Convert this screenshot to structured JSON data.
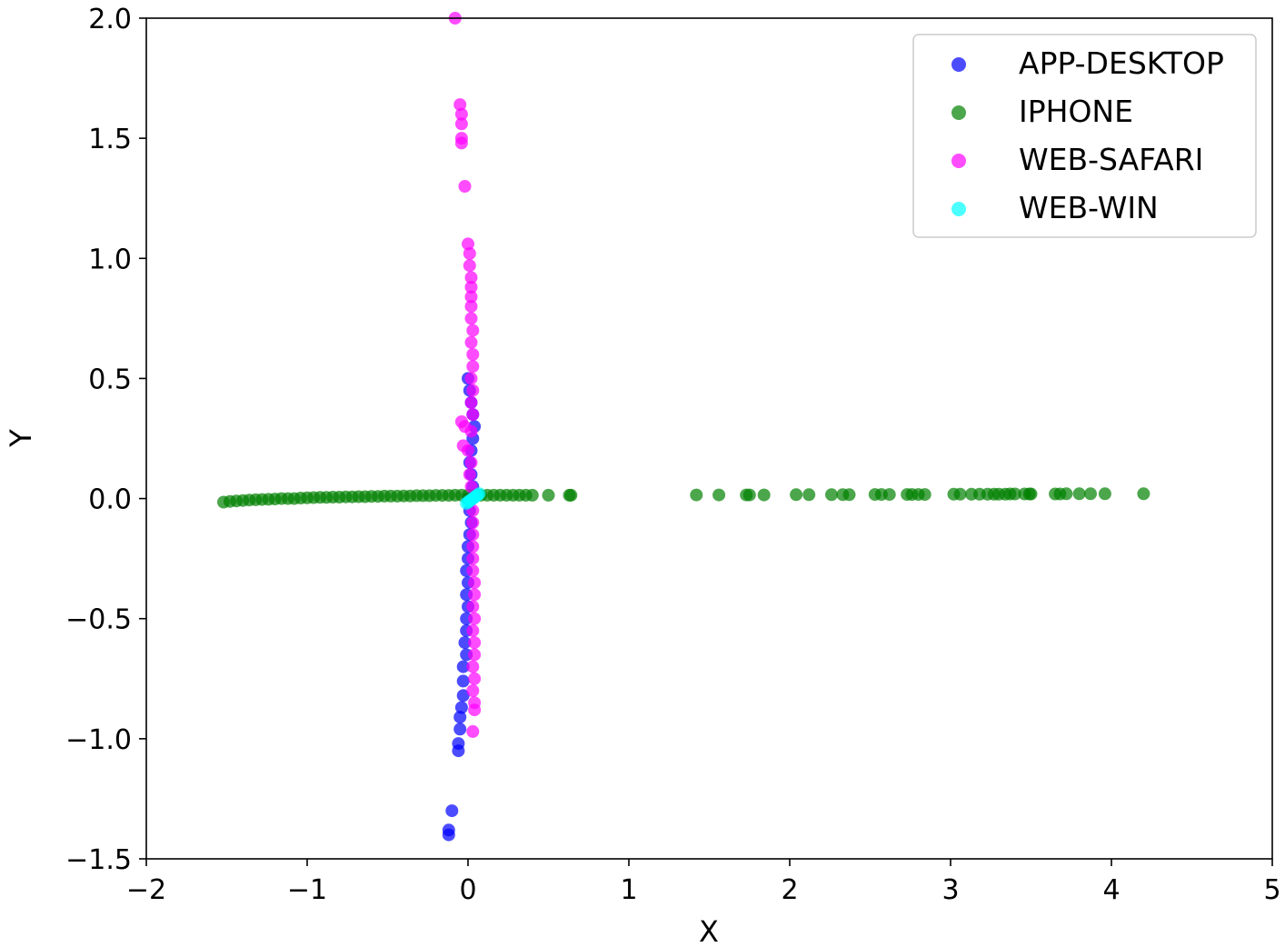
{
  "chart_data": {
    "type": "scatter",
    "title": "",
    "xlabel": "X",
    "ylabel": "Y",
    "xlim": [
      -2,
      5
    ],
    "ylim": [
      -1.5,
      2.0
    ],
    "xticks": [
      -2,
      -1,
      0,
      1,
      2,
      3,
      4,
      5
    ],
    "yticks": [
      -1.5,
      -1.0,
      -0.5,
      0.0,
      0.5,
      1.0,
      1.5,
      2.0
    ],
    "xtick_labels": [
      "−2",
      "−1",
      "0",
      "1",
      "2",
      "3",
      "4",
      "5"
    ],
    "ytick_labels": [
      "−1.5",
      "−1.0",
      "−0.5",
      "0.0",
      "0.5",
      "1.0",
      "1.5",
      "2.0"
    ],
    "grid": false,
    "legend_position": "top-right",
    "series": [
      {
        "name": "APP-DESKTOP",
        "color": "#0000ff",
        "points": [
          [
            0.0,
            0.5
          ],
          [
            0.01,
            0.45
          ],
          [
            0.02,
            0.4
          ],
          [
            0.03,
            0.35
          ],
          [
            0.04,
            0.3
          ],
          [
            0.03,
            0.25
          ],
          [
            0.02,
            0.2
          ],
          [
            0.01,
            0.15
          ],
          [
            0.02,
            0.1
          ],
          [
            0.03,
            0.05
          ],
          [
            0.0,
            0.0
          ],
          [
            0.01,
            -0.05
          ],
          [
            0.02,
            -0.1
          ],
          [
            0.01,
            -0.15
          ],
          [
            0.0,
            -0.2
          ],
          [
            0.0,
            -0.25
          ],
          [
            -0.01,
            -0.3
          ],
          [
            0.0,
            -0.35
          ],
          [
            -0.01,
            -0.4
          ],
          [
            0.0,
            -0.45
          ],
          [
            -0.01,
            -0.5
          ],
          [
            -0.01,
            -0.55
          ],
          [
            -0.02,
            -0.6
          ],
          [
            -0.01,
            -0.65
          ],
          [
            -0.03,
            -0.7
          ],
          [
            -0.03,
            -0.76
          ],
          [
            -0.03,
            -0.82
          ],
          [
            -0.04,
            -0.87
          ],
          [
            -0.05,
            -0.91
          ],
          [
            -0.05,
            -0.96
          ],
          [
            -0.06,
            -1.02
          ],
          [
            -0.06,
            -1.05
          ],
          [
            -0.1,
            -1.3
          ],
          [
            -0.12,
            -1.38
          ],
          [
            -0.12,
            -1.4
          ]
        ]
      },
      {
        "name": "IPHONE",
        "color": "#008000",
        "points": [
          [
            -1.52,
            -0.015
          ],
          [
            -1.48,
            -0.012
          ],
          [
            -1.44,
            -0.01
          ],
          [
            -1.4,
            -0.008
          ],
          [
            -1.36,
            -0.006
          ],
          [
            -1.32,
            -0.005
          ],
          [
            -1.28,
            -0.004
          ],
          [
            -1.24,
            -0.003
          ],
          [
            -1.2,
            -0.002
          ],
          [
            -1.16,
            0.0
          ],
          [
            -1.12,
            0.0
          ],
          [
            -1.08,
            0.0
          ],
          [
            -1.04,
            0.002
          ],
          [
            -1.0,
            0.003
          ],
          [
            -0.96,
            0.004
          ],
          [
            -0.92,
            0.005
          ],
          [
            -0.88,
            0.005
          ],
          [
            -0.84,
            0.006
          ],
          [
            -0.8,
            0.006
          ],
          [
            -0.76,
            0.007
          ],
          [
            -0.72,
            0.007
          ],
          [
            -0.68,
            0.008
          ],
          [
            -0.64,
            0.008
          ],
          [
            -0.6,
            0.009
          ],
          [
            -0.56,
            0.009
          ],
          [
            -0.52,
            0.01
          ],
          [
            -0.48,
            0.01
          ],
          [
            -0.44,
            0.01
          ],
          [
            -0.4,
            0.011
          ],
          [
            -0.36,
            0.011
          ],
          [
            -0.32,
            0.012
          ],
          [
            -0.28,
            0.012
          ],
          [
            -0.24,
            0.012
          ],
          [
            -0.2,
            0.013
          ],
          [
            -0.16,
            0.013
          ],
          [
            -0.12,
            0.013
          ],
          [
            -0.08,
            0.014
          ],
          [
            -0.04,
            0.014
          ],
          [
            0.0,
            0.014
          ],
          [
            0.04,
            0.014
          ],
          [
            0.08,
            0.014
          ],
          [
            0.12,
            0.014
          ],
          [
            0.16,
            0.014
          ],
          [
            0.2,
            0.014
          ],
          [
            0.24,
            0.014
          ],
          [
            0.28,
            0.014
          ],
          [
            0.32,
            0.014
          ],
          [
            0.36,
            0.014
          ],
          [
            0.4,
            0.014
          ],
          [
            0.5,
            0.014
          ],
          [
            0.63,
            0.014
          ],
          [
            0.64,
            0.014
          ],
          [
            1.42,
            0.015
          ],
          [
            1.56,
            0.015
          ],
          [
            1.73,
            0.015
          ],
          [
            1.75,
            0.015
          ],
          [
            1.84,
            0.015
          ],
          [
            2.04,
            0.016
          ],
          [
            2.12,
            0.016
          ],
          [
            2.26,
            0.016
          ],
          [
            2.33,
            0.016
          ],
          [
            2.37,
            0.016
          ],
          [
            2.53,
            0.017
          ],
          [
            2.57,
            0.017
          ],
          [
            2.62,
            0.017
          ],
          [
            2.73,
            0.017
          ],
          [
            2.76,
            0.017
          ],
          [
            2.8,
            0.017
          ],
          [
            2.84,
            0.017
          ],
          [
            3.02,
            0.018
          ],
          [
            3.06,
            0.018
          ],
          [
            3.13,
            0.018
          ],
          [
            3.18,
            0.018
          ],
          [
            3.23,
            0.018
          ],
          [
            3.27,
            0.018
          ],
          [
            3.3,
            0.018
          ],
          [
            3.34,
            0.018
          ],
          [
            3.37,
            0.019
          ],
          [
            3.4,
            0.019
          ],
          [
            3.46,
            0.019
          ],
          [
            3.49,
            0.019
          ],
          [
            3.5,
            0.019
          ],
          [
            3.65,
            0.019
          ],
          [
            3.68,
            0.019
          ],
          [
            3.72,
            0.02
          ],
          [
            3.8,
            0.02
          ],
          [
            3.87,
            0.02
          ],
          [
            3.96,
            0.02
          ],
          [
            4.2,
            0.02
          ]
        ]
      },
      {
        "name": "WEB-SAFARI",
        "color": "#ff00ff",
        "points": [
          [
            -0.08,
            2.0
          ],
          [
            -0.05,
            1.64
          ],
          [
            -0.04,
            1.6
          ],
          [
            -0.04,
            1.56
          ],
          [
            -0.04,
            1.5
          ],
          [
            -0.04,
            1.48
          ],
          [
            -0.02,
            1.3
          ],
          [
            0.0,
            1.06
          ],
          [
            0.01,
            1.02
          ],
          [
            0.01,
            0.97
          ],
          [
            0.02,
            0.92
          ],
          [
            0.02,
            0.88
          ],
          [
            0.02,
            0.84
          ],
          [
            0.02,
            0.8
          ],
          [
            0.02,
            0.75
          ],
          [
            0.03,
            0.7
          ],
          [
            0.02,
            0.65
          ],
          [
            0.03,
            0.6
          ],
          [
            0.03,
            0.55
          ],
          [
            0.02,
            0.5
          ],
          [
            0.03,
            0.45
          ],
          [
            0.02,
            0.4
          ],
          [
            0.03,
            0.35
          ],
          [
            -0.04,
            0.32
          ],
          [
            -0.02,
            0.3
          ],
          [
            0.02,
            0.28
          ],
          [
            -0.03,
            0.22
          ],
          [
            0.0,
            0.2
          ],
          [
            0.02,
            0.15
          ],
          [
            0.01,
            0.1
          ],
          [
            0.02,
            0.05
          ],
          [
            0.03,
            0.0
          ],
          [
            0.03,
            -0.05
          ],
          [
            0.03,
            -0.1
          ],
          [
            0.03,
            -0.15
          ],
          [
            0.03,
            -0.2
          ],
          [
            0.03,
            -0.25
          ],
          [
            0.03,
            -0.3
          ],
          [
            0.04,
            -0.35
          ],
          [
            0.04,
            -0.4
          ],
          [
            0.03,
            -0.45
          ],
          [
            0.04,
            -0.5
          ],
          [
            0.03,
            -0.55
          ],
          [
            0.04,
            -0.6
          ],
          [
            0.04,
            -0.65
          ],
          [
            0.03,
            -0.7
          ],
          [
            0.04,
            -0.75
          ],
          [
            0.03,
            -0.8
          ],
          [
            0.04,
            -0.85
          ],
          [
            0.04,
            -0.88
          ],
          [
            0.03,
            -0.97
          ]
        ]
      },
      {
        "name": "WEB-WIN",
        "color": "#00ffff",
        "points": [
          [
            -0.01,
            -0.02
          ],
          [
            0.0,
            -0.015
          ],
          [
            0.01,
            -0.01
          ],
          [
            0.02,
            -0.005
          ],
          [
            0.03,
            0.0
          ],
          [
            0.04,
            0.005
          ],
          [
            0.05,
            0.01
          ],
          [
            0.06,
            0.015
          ],
          [
            0.07,
            0.02
          ]
        ]
      }
    ]
  }
}
